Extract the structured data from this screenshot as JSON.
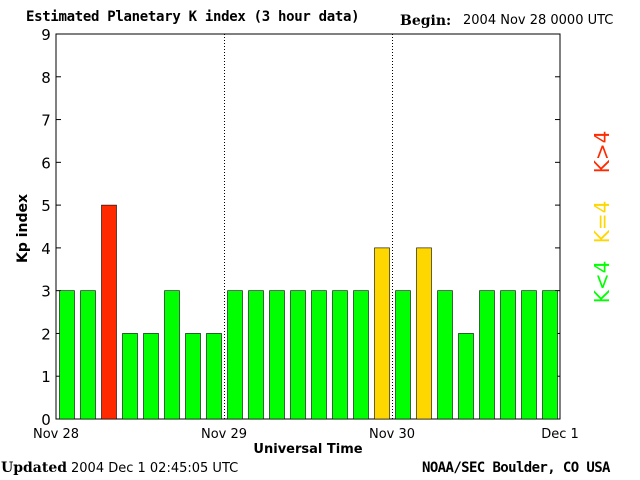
{
  "header": {
    "title": "Estimated Planetary K index (3 hour data)",
    "begin_label": "Begin:",
    "begin_value": "2004 Nov 28 0000 UTC"
  },
  "footer": {
    "updated_label": "Updated",
    "updated_value": "2004 Dec  1 02:45:05 UTC",
    "credit": "NOAA/SEC Boulder, CO USA"
  },
  "colors": {
    "low": "#00ff00",
    "equal": "#ffd700",
    "high": "#ff2a00"
  },
  "legend": [
    {
      "label": "K<4",
      "color": "#00ff00"
    },
    {
      "label": "K=4",
      "color": "#ffd700"
    },
    {
      "label": "K>4",
      "color": "#ff2a00"
    }
  ],
  "chart_data": {
    "type": "bar",
    "xlabel": "Universal Time",
    "ylabel": "Kp index",
    "ylim": [
      0,
      9
    ],
    "yticks": [
      0,
      1,
      2,
      3,
      4,
      5,
      6,
      7,
      8,
      9
    ],
    "x_tick_labels": [
      "Nov 28",
      "Nov 29",
      "Nov 30",
      "Dec 1"
    ],
    "bars_per_day": 8,
    "day_separators": "dotted vertical lines at day boundaries",
    "values": [
      3,
      3,
      5,
      2,
      2,
      3,
      2,
      2,
      3,
      3,
      3,
      3,
      3,
      3,
      3,
      4,
      3,
      4,
      3,
      2,
      3,
      3,
      3,
      3
    ]
  }
}
